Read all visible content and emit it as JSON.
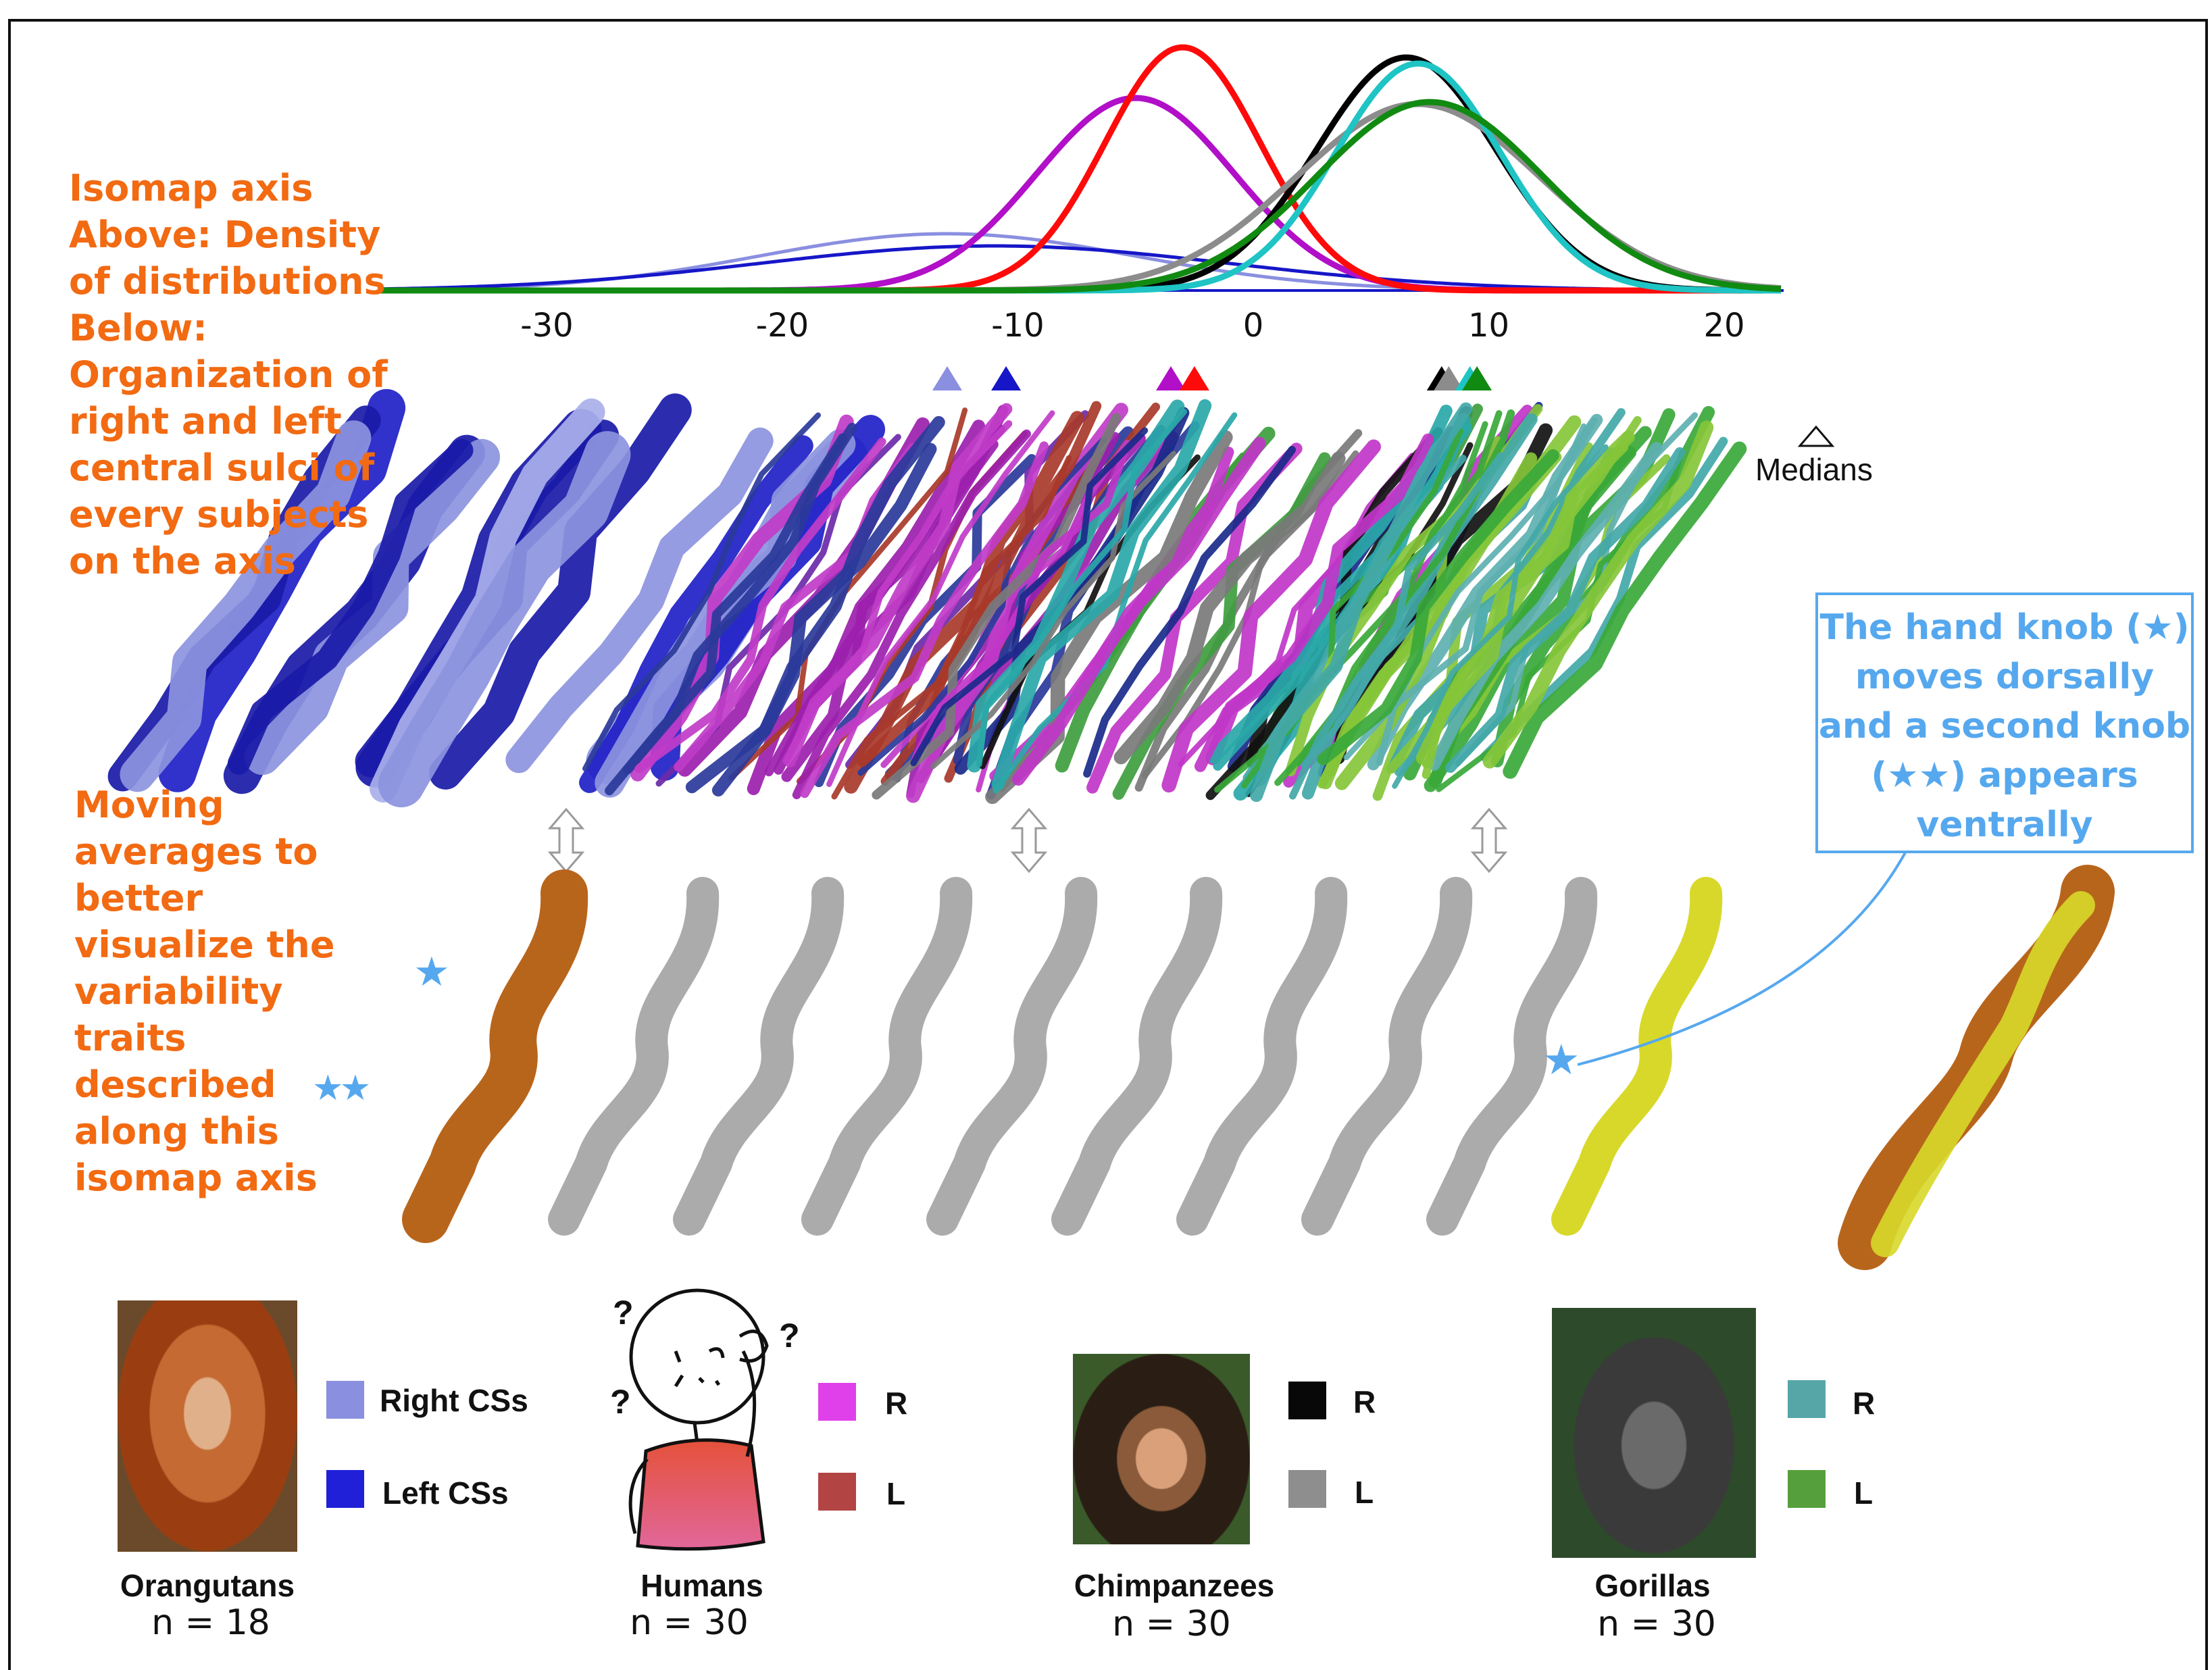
{
  "texts": {
    "axis_title": "Isomap axis\nAbove: Density\nof distributions\nBelow:\nOrganization of\nright and left\ncentral sulci of\nevery subjects\non the axis",
    "moving_averages": "Moving\naverages to\nbetter\nvisualize the\nvariability\ntraits\ndescribed\nalong this\nisomap axis",
    "hand_knob_note": "The hand knob (★)\nmoves dorsally\nand a second knob\n(★★) appears\nventrally",
    "medians_label": "Medians",
    "star_single": "★",
    "star_double": "★★"
  },
  "chart_data": {
    "type": "line",
    "x_ticks": [
      "-30",
      "-20",
      "-10",
      "0",
      "10",
      "20"
    ],
    "x_tick_values": [
      -30,
      -20,
      -10,
      0,
      10,
      20
    ],
    "xlim": [
      -35,
      22
    ],
    "series": [
      {
        "name": "Orangutans Right CSs",
        "color": "#8a8fe0",
        "mean": -13,
        "sd": 8,
        "peak": 0.28,
        "median": -13
      },
      {
        "name": "Orangutans Left CSs",
        "color": "#1616c8",
        "mean": -11,
        "sd": 10,
        "peak": 0.22,
        "median": -10.5
      },
      {
        "name": "Humans R",
        "color": "#b10fc8",
        "mean": -5,
        "sd": 4.2,
        "peak": 0.95,
        "median": -3.5
      },
      {
        "name": "Humans L",
        "color": "#ff0a0a",
        "mean": -3,
        "sd": 3.3,
        "peak": 1.2,
        "median": -2.5
      },
      {
        "name": "Chimpanzees R",
        "color": "#000000",
        "mean": 6.5,
        "sd": 3.8,
        "peak": 1.15,
        "median": 8
      },
      {
        "name": "Chimpanzees L",
        "color": "#8c8c8c",
        "mean": 7,
        "sd": 5.2,
        "peak": 0.92,
        "median": 8.3
      },
      {
        "name": "Gorillas R",
        "color": "#1fc4c4",
        "mean": 7,
        "sd": 3.5,
        "peak": 1.12,
        "median": 9.2
      },
      {
        "name": "Gorillas L",
        "color": "#118a11",
        "mean": 7.5,
        "sd": 4.8,
        "peak": 0.93,
        "median": 9.5
      }
    ]
  },
  "legend": [
    {
      "species": "Orangutans",
      "n": "n = 18",
      "r_label": "Right CSs",
      "l_label": "Left CSs",
      "r_color": "#8a8fe0",
      "l_color": "#2020d8"
    },
    {
      "species": "Humans",
      "n": "n = 30",
      "r_label": "R",
      "l_label": "L",
      "r_color": "#e040ea",
      "l_color": "#b34444"
    },
    {
      "species": "Chimpanzees",
      "n": "n = 30",
      "r_label": "R",
      "l_label": "L",
      "r_color": "#080808",
      "l_color": "#8e8e8e"
    },
    {
      "species": "Gorillas",
      "n": "n = 30",
      "r_label": "R",
      "l_label": "L",
      "r_color": "#56a6a8",
      "l_color": "#55a03c"
    }
  ],
  "human_icon_marks": [
    "?",
    "?",
    "?"
  ],
  "colors": {
    "orange_text": "#f26a12",
    "star_blue": "#56a8ee",
    "sulcus_orange": "#b8651c",
    "sulcus_gray": "#a8a8a8",
    "sulcus_yellow": "#d8d82a"
  }
}
